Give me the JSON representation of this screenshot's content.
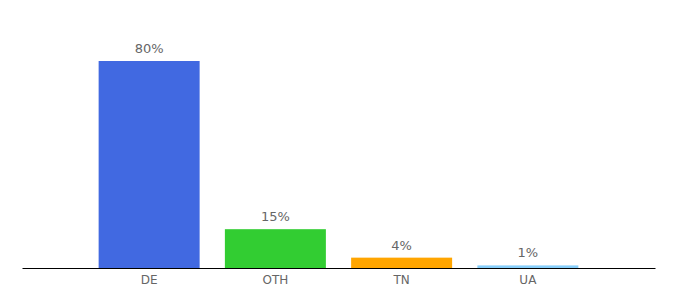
{
  "chart_data": {
    "type": "bar",
    "categories": [
      "DE",
      "OTH",
      "TN",
      "UA"
    ],
    "values": [
      80,
      15,
      4,
      1
    ],
    "value_labels": [
      "80%",
      "15%",
      "4%",
      "1%"
    ],
    "colors": [
      "#4169e1",
      "#32cd32",
      "#ffa500",
      "#87cefa"
    ],
    "ylim": [
      0,
      80
    ],
    "data_labels": true,
    "tick_labels": "x"
  }
}
